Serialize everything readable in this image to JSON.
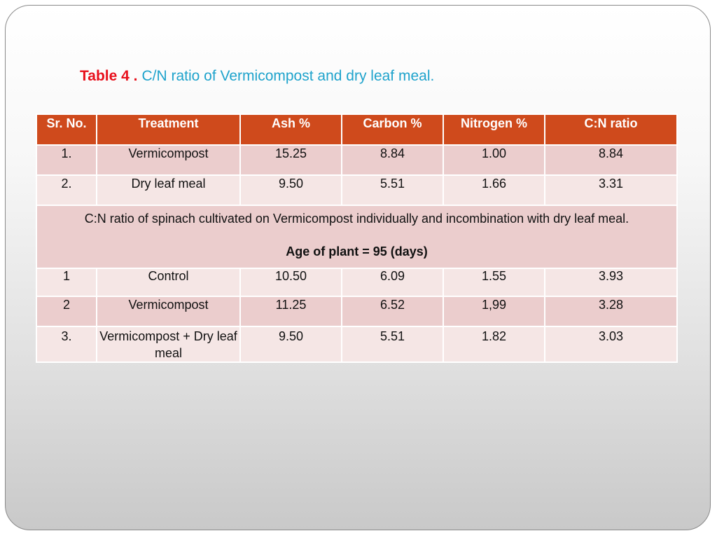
{
  "title": {
    "prefix": "Table 4 .",
    "caption": "C/N ratio of Vermicompost and dry leaf meal."
  },
  "table": {
    "headers": [
      "Sr. No.",
      "Treatment",
      "Ash %",
      "Carbon %",
      "Nitrogen %",
      "C:N ratio"
    ],
    "rows_part1": [
      [
        "1.",
        "Vermicompost",
        "15.25",
        "8.84",
        "1.00",
        "8.84"
      ],
      [
        "2.",
        "Dry leaf meal",
        "9.50",
        "5.51",
        "1.66",
        "3.31"
      ]
    ],
    "merged_note": "C:N ratio of spinach cultivated on Vermicompost individually and incombination with dry leaf meal.",
    "merged_age": "Age of plant = 95 (days)",
    "rows_part2": [
      [
        "1",
        "Control",
        "10.50",
        "6.09",
        "1.55",
        "3.93"
      ],
      [
        "2",
        "Vermicompost",
        "11.25",
        "6.52",
        "1,99",
        "3.28"
      ],
      [
        "3.",
        "Vermicompost + Dry leaf meal",
        "9.50",
        "5.51",
        "1.82",
        "3.03"
      ]
    ]
  },
  "colors": {
    "header_bg": "#cf4a1c",
    "row_dark": "#ebcdcd",
    "row_light": "#f5e6e5",
    "title_prefix": "#e8101c",
    "title_caption": "#1fa3cc"
  }
}
